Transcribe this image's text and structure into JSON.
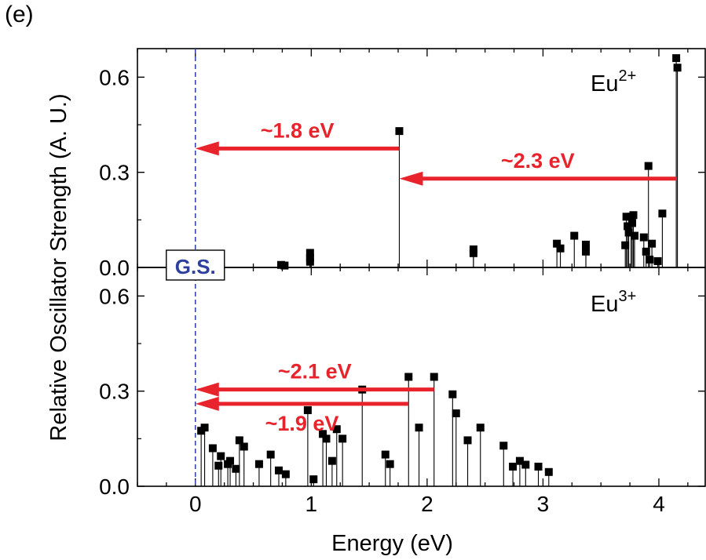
{
  "figure_label": "(e)",
  "chart_data": [
    {
      "type": "scatter",
      "style": "stem",
      "panel": "top",
      "annotation": "Eu",
      "annotation_sup": "2+",
      "xlabel": "Energy (eV)",
      "ylabel": "Relative Oscillator Strength (A. U.)",
      "xlim": [
        -0.5,
        4.4
      ],
      "ylim": [
        0,
        0.69
      ],
      "xticks": [
        "0",
        "1",
        "2",
        "3",
        "4"
      ],
      "yticks": [
        "0.0",
        "0.3",
        "0.6"
      ],
      "ground_state_label": "G.S.",
      "ground_state_x": 0,
      "points": [
        {
          "x": 0.74,
          "y": 0.008
        },
        {
          "x": 0.77,
          "y": 0.006
        },
        {
          "x": 0.99,
          "y": 0.046
        },
        {
          "x": 0.99,
          "y": 0.03
        },
        {
          "x": 0.99,
          "y": 0.018
        },
        {
          "x": 1.76,
          "y": 0.43
        },
        {
          "x": 2.4,
          "y": 0.057
        },
        {
          "x": 2.4,
          "y": 0.045
        },
        {
          "x": 3.12,
          "y": 0.075
        },
        {
          "x": 3.15,
          "y": 0.06
        },
        {
          "x": 3.27,
          "y": 0.1
        },
        {
          "x": 3.37,
          "y": 0.072
        },
        {
          "x": 3.37,
          "y": 0.05
        },
        {
          "x": 3.71,
          "y": 0.07
        },
        {
          "x": 3.72,
          "y": 0.16
        },
        {
          "x": 3.73,
          "y": 0.13
        },
        {
          "x": 3.74,
          "y": 0.11
        },
        {
          "x": 3.76,
          "y": 0.16
        },
        {
          "x": 3.77,
          "y": 0.14
        },
        {
          "x": 3.78,
          "y": 0.165
        },
        {
          "x": 3.79,
          "y": 0.1
        },
        {
          "x": 3.87,
          "y": 0.095
        },
        {
          "x": 3.89,
          "y": 0.05
        },
        {
          "x": 3.91,
          "y": 0.32
        },
        {
          "x": 3.92,
          "y": 0.025
        },
        {
          "x": 3.94,
          "y": 0.075
        },
        {
          "x": 3.99,
          "y": 0.02
        },
        {
          "x": 4.03,
          "y": 0.17
        },
        {
          "x": 4.15,
          "y": 0.66
        },
        {
          "x": 4.16,
          "y": 0.63
        }
      ],
      "arrows": [
        {
          "label": "~1.8 eV",
          "x_from": 1.76,
          "x_to": 0.0,
          "y": 0.375
        },
        {
          "label": "~2.3 eV",
          "x_from": 4.15,
          "x_to": 1.76,
          "y": 0.28
        }
      ]
    },
    {
      "type": "scatter",
      "style": "stem",
      "panel": "bottom",
      "annotation": "Eu",
      "annotation_sup": "3+",
      "xlabel": "Energy (eV)",
      "ylabel": "Relative Oscillator Strength (A. U.)",
      "xlim": [
        -0.5,
        4.4
      ],
      "ylim": [
        0,
        0.69
      ],
      "xticks": [
        "0",
        "1",
        "2",
        "3",
        "4"
      ],
      "yticks": [
        "0.0",
        "0.3",
        "0.6"
      ],
      "points": [
        {
          "x": 0.05,
          "y": 0.175
        },
        {
          "x": 0.08,
          "y": 0.185
        },
        {
          "x": 0.15,
          "y": 0.12
        },
        {
          "x": 0.2,
          "y": 0.065
        },
        {
          "x": 0.22,
          "y": 0.095
        },
        {
          "x": 0.28,
          "y": 0.07
        },
        {
          "x": 0.3,
          "y": 0.08
        },
        {
          "x": 0.35,
          "y": 0.055
        },
        {
          "x": 0.38,
          "y": 0.145
        },
        {
          "x": 0.42,
          "y": 0.125
        },
        {
          "x": 0.55,
          "y": 0.07
        },
        {
          "x": 0.65,
          "y": 0.1
        },
        {
          "x": 0.72,
          "y": 0.05
        },
        {
          "x": 0.78,
          "y": 0.038
        },
        {
          "x": 0.97,
          "y": 0.24
        },
        {
          "x": 1.02,
          "y": 0.022
        },
        {
          "x": 1.1,
          "y": 0.165
        },
        {
          "x": 1.13,
          "y": 0.15
        },
        {
          "x": 1.18,
          "y": 0.08
        },
        {
          "x": 1.22,
          "y": 0.18
        },
        {
          "x": 1.27,
          "y": 0.15
        },
        {
          "x": 1.44,
          "y": 0.305
        },
        {
          "x": 1.64,
          "y": 0.1
        },
        {
          "x": 1.68,
          "y": 0.07
        },
        {
          "x": 1.84,
          "y": 0.345
        },
        {
          "x": 1.93,
          "y": 0.185
        },
        {
          "x": 2.06,
          "y": 0.345
        },
        {
          "x": 2.22,
          "y": 0.29
        },
        {
          "x": 2.25,
          "y": 0.23
        },
        {
          "x": 2.35,
          "y": 0.145
        },
        {
          "x": 2.46,
          "y": 0.185
        },
        {
          "x": 2.66,
          "y": 0.128
        },
        {
          "x": 2.74,
          "y": 0.062
        },
        {
          "x": 2.8,
          "y": 0.08
        },
        {
          "x": 2.85,
          "y": 0.068
        },
        {
          "x": 2.96,
          "y": 0.062
        },
        {
          "x": 3.05,
          "y": 0.045
        }
      ],
      "arrows": [
        {
          "label": "~2.1 eV",
          "x_from": 2.06,
          "x_to": 0.0,
          "y": 0.305
        },
        {
          "label": "~1.9 eV",
          "x_from": 1.84,
          "x_to": 0.0,
          "y": 0.26
        }
      ]
    }
  ],
  "colors": {
    "axis": "#000000",
    "marker": "#000000",
    "arrow": "#e8232c",
    "ground_state": "#2e3f9e"
  }
}
